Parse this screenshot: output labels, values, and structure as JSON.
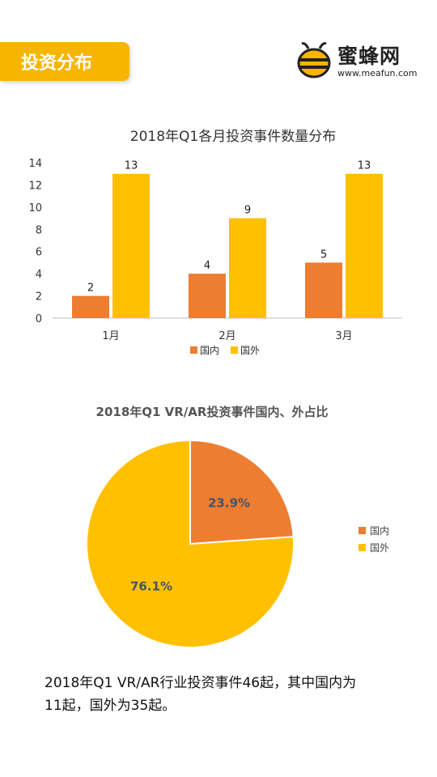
{
  "header": {
    "tag_label": "投资分布"
  },
  "brand": {
    "name": "蜜蜂网",
    "url": "www.meafun.com"
  },
  "colors": {
    "domestic": "#ed7d31",
    "foreign": "#ffc000",
    "accent": "#f7b500"
  },
  "chart_data": [
    {
      "type": "bar",
      "title": "2018年Q1各月投资事件数量分布",
      "categories": [
        "1月",
        "2月",
        "3月"
      ],
      "series": [
        {
          "name": "国内",
          "values": [
            2,
            4,
            5
          ]
        },
        {
          "name": "国外",
          "values": [
            13,
            9,
            13
          ]
        }
      ],
      "yticks": [
        "0",
        "2",
        "4",
        "6",
        "8",
        "10",
        "12",
        "14"
      ],
      "ylim": [
        0,
        14
      ],
      "grid": false,
      "legend": "bottom"
    },
    {
      "type": "pie",
      "title": "2018年Q1 VR/AR投资事件国内、外占比",
      "labels": [
        "国内",
        "国外"
      ],
      "values": [
        23.9,
        76.1
      ],
      "data_labels": [
        "23.9%",
        "76.1%"
      ],
      "legend": "right"
    }
  ],
  "caption": {
    "line1": "2018年Q1 VR/AR行业投资事件46起，其中国内为",
    "line2": "11起，国外为35起。"
  }
}
